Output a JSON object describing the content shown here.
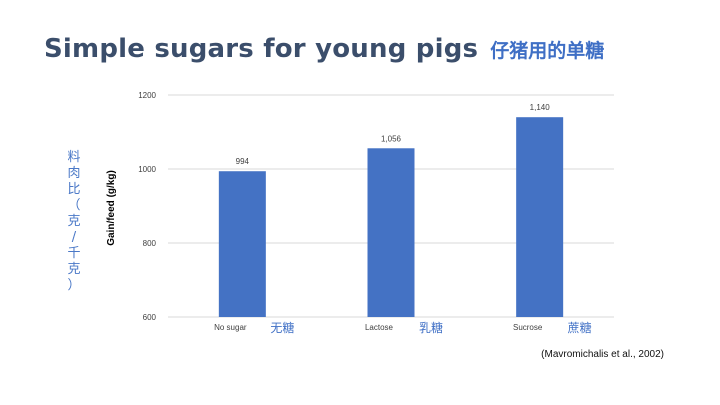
{
  "title": {
    "english": "Simple sugars for young pigs",
    "chinese": "仔猪用的单糖"
  },
  "cn_ylabel": [
    "料",
    "肉",
    "比",
    "（",
    "克",
    "/",
    "千",
    "克",
    "）"
  ],
  "citation": "(Mavromichalis et al., 2002)",
  "colors": {
    "bar": "#4472c4",
    "gridline": "#d9d9d9",
    "title": "#3b4e6b",
    "accent": "#3f6fc5"
  },
  "chart_data": {
    "type": "bar",
    "categories": [
      "No sugar",
      "Lactose",
      "Sucrose"
    ],
    "categories_zh": [
      "无糖",
      "乳糖",
      "蔗糖"
    ],
    "values": [
      994,
      1056,
      1140
    ],
    "value_labels": [
      "994",
      "1,056",
      "1,140"
    ],
    "ylabel": "Gain/feed (g/kg)",
    "ylim": [
      600,
      1200
    ],
    "yticks": [
      600,
      800,
      1000,
      1200
    ],
    "grid": true
  }
}
